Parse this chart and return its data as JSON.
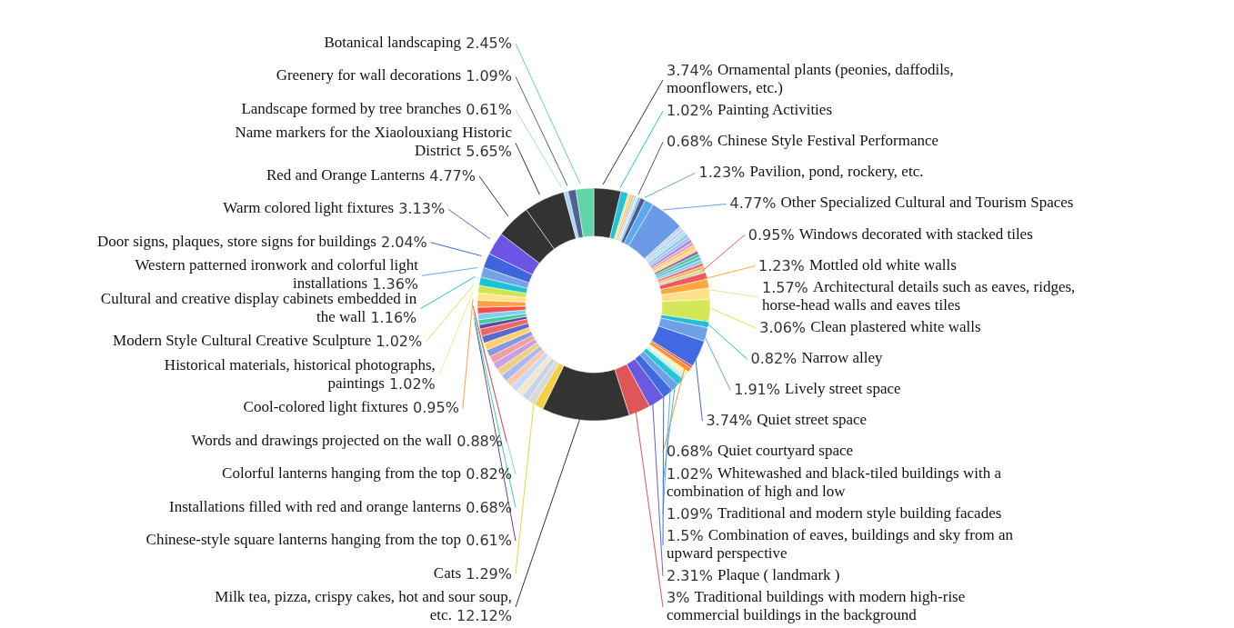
{
  "chart_data": {
    "type": "donut",
    "categories": [
      "Ornamental plants (peonies, daffodils, moonflowers, etc.)",
      "Painting Activities",
      null,
      null,
      null,
      null,
      null,
      null,
      "Chinese Style Festival Performance",
      "Pavilion, pond, rockery, etc.",
      "Other Specialized Cultural and Tourism Spaces",
      null,
      null,
      null,
      null,
      null,
      null,
      null,
      null,
      null,
      null,
      null,
      null,
      null,
      null,
      null,
      null,
      "Windows decorated with stacked tiles",
      "Mottled old white walls",
      "Architectural details such as eaves, ridges,  horse-head walls and eaves tiles",
      "Clean plastered white walls",
      "Narrow alley",
      "Lively street space",
      "Quiet street space",
      null,
      "Quiet courtyard space",
      null,
      null,
      null,
      null,
      "Whitewashed and black-tiled buildings with a combination of high and low",
      "Traditional and modern style building facades",
      "Combination of eaves, buildings and sky from an upward perspective",
      "Plaque ( landmark )",
      "Traditional buildings with modern high-rise commercial buildings in the background",
      "Milk tea, pizza, crispy cakes, hot and sour soup, etc.",
      "Cats",
      null,
      null,
      null,
      null,
      null,
      null,
      null,
      null,
      null,
      null,
      null,
      null,
      null,
      "Chinese-style square lanterns hanging from the top",
      "Installations filled with red and orange lanterns",
      "Colorful lanterns hanging from the top",
      "Words and drawings projected on the wall",
      "Cool-colored light fixtures",
      "Historical materials, historical photographs, paintings",
      "Modern Style Cultural Creative Sculpture",
      "Cultural and creative display cabinets embedded in the wall",
      "Western patterned ironwork and colorful light installations",
      "Door signs, plaques, store signs for buildings",
      "Warm colored light fixtures",
      "Red and Orange Lanterns",
      "Name markers for the Xiaolouxiang Historic District",
      "Landscape formed by tree branches",
      "Greenery for wall decorations",
      "Botanical landscaping"
    ],
    "values": [
      3.74,
      1.02,
      0.3,
      0.3,
      0.3,
      0.3,
      0.3,
      0.3,
      0.68,
      1.23,
      4.77,
      0.45,
      0.45,
      0.45,
      0.45,
      0.45,
      0.45,
      0.45,
      0.45,
      0.45,
      0.45,
      0.45,
      0.45,
      0.45,
      0.45,
      0.45,
      0.45,
      0.95,
      1.23,
      1.57,
      3.06,
      0.82,
      1.91,
      3.74,
      0.3,
      0.68,
      0.3,
      0.3,
      0.3,
      0.3,
      1.02,
      1.09,
      1.5,
      2.31,
      3,
      12.12,
      1.29,
      1,
      1,
      1,
      1,
      1,
      1,
      1,
      1,
      1,
      1,
      1,
      1,
      1,
      0.61,
      0.68,
      0.82,
      0.88,
      0.95,
      1.02,
      1.02,
      1.16,
      1.36,
      2.04,
      3.13,
      4.77,
      5.65,
      0.61,
      1.09,
      2.45
    ],
    "colors": [
      "#333333",
      "#22c3d6",
      "#f7e08a",
      "#fac858",
      "#ffb070",
      "#a8d8f0",
      "#c8e6ff",
      "#7ab0e8",
      "#4a5a8a",
      "#59a8f0",
      "#6b9be6",
      "#c8d4ec",
      "#b8d4f0",
      "#b0e0e8",
      "#8ec8f0",
      "#b0b8f0",
      "#9a8ee6",
      "#f0a0b0",
      "#ffc870",
      "#ffd880",
      "#8a6ab0",
      "#4ecb8f",
      "#60b8e0",
      "#7fd0e8",
      "#f06e6e",
      "#ffb060",
      "#c8e0a0",
      "#f05a5a",
      "#ffa840",
      "#ffe08a",
      "#d4e857",
      "#1fbfd6",
      "#6f9fe6",
      "#4169e1",
      "#e04848",
      "#ff9030",
      "#ffec9a",
      "#f5f0c0",
      "#c8f0d8",
      "#a8e8e0",
      "#26c6da",
      "#6f9fe6",
      "#4169e1",
      "#6a5ae0",
      "#e05555",
      "#333333",
      "#f5d040",
      "#d9d9d9",
      "#c9d3e6",
      "#f0e8c8",
      "#c8d8f8",
      "#f8c8a8",
      "#a8b8f0",
      "#f0d080",
      "#c8a0e0",
      "#f0a0a0",
      "#8898e0",
      "#ffd070",
      "#5a6ac8",
      "#ee6666",
      "#5a4a9a",
      "#3fcf9f",
      "#7fd0f0",
      "#f04f4f",
      "#ffa040",
      "#ffe48e",
      "#d0e450",
      "#1cc4d0",
      "#74a2e8",
      "#3f64dc",
      "#6c55e4",
      "#333333",
      "#333333",
      "#a8d8f0",
      "#50628f",
      "#5fd6a8"
    ],
    "value_labels": [
      "3.74%",
      "1.02%",
      null,
      null,
      null,
      null,
      null,
      null,
      "0.68%",
      "1.23%",
      "4.77%",
      null,
      null,
      null,
      null,
      null,
      null,
      null,
      null,
      null,
      null,
      null,
      null,
      null,
      null,
      null,
      null,
      "0.95%",
      "1.23%",
      "1.57%",
      "3.06%",
      "0.82%",
      "1.91%",
      "3.74%",
      null,
      "0.68%",
      null,
      null,
      null,
      null,
      "1.02%",
      "1.09%",
      "1.5%",
      "2.31%",
      "3%",
      "12.12%",
      "1.29%",
      null,
      null,
      null,
      null,
      null,
      null,
      null,
      null,
      null,
      null,
      null,
      null,
      null,
      "0.61%",
      "0.68%",
      "0.82%",
      "0.88%",
      "0.95%",
      "1.02%",
      "1.02%",
      "1.16%",
      "1.36%",
      "2.04%",
      "3.13%",
      "4.77%",
      "5.65%",
      "0.61%",
      "1.09%",
      "2.45%"
    ]
  }
}
